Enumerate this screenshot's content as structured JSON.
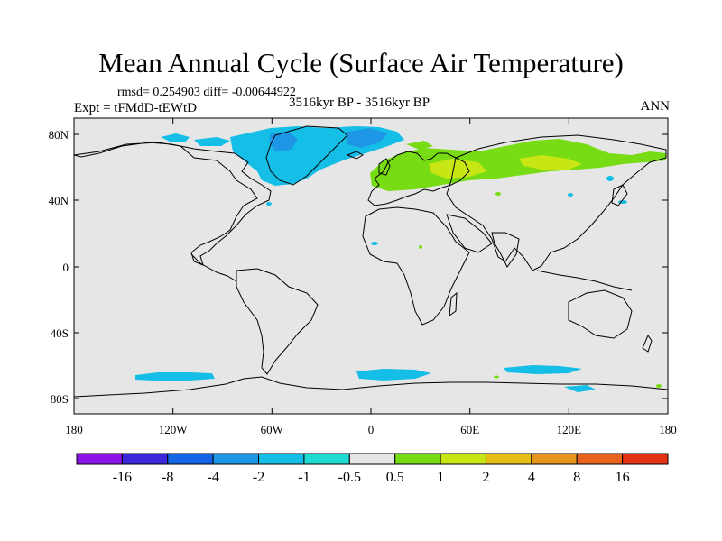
{
  "title": "Mean Annual Cycle (Surface Air Temperature)",
  "stats": "rmsd= 0.254903  diff= -0.00644922",
  "experiment": "Expt = tFMdD-tEWtD",
  "period": "3516kyr BP - 3516kyr BP",
  "season": "ANN",
  "axes": {
    "lat_labels": [
      "80N",
      "40N",
      "0",
      "40S",
      "80S"
    ],
    "lon_labels": [
      "180",
      "120W",
      "60W",
      "0",
      "60E",
      "120E",
      "180"
    ]
  },
  "colorbar": {
    "labels": [
      "-16",
      "-8",
      "-4",
      "-2",
      "-1",
      "-0.5",
      "0.5",
      "1",
      "2",
      "4",
      "8",
      "16"
    ],
    "colors": [
      "#8a14e6",
      "#3c28dc",
      "#1464e6",
      "#1e96e6",
      "#14bee6",
      "#1edcd2",
      "#e6e6e6",
      "#78dc14",
      "#c8e614",
      "#e6be14",
      "#e6961e",
      "#e6641e",
      "#e63214"
    ]
  },
  "colors": {
    "ocean_background": "#e6e6e6",
    "cool_anomaly": "#14bee6",
    "cooler_anomaly": "#1e96e6",
    "warm_anomaly": "#78dc14",
    "warmer_anomaly": "#c8e614"
  }
}
